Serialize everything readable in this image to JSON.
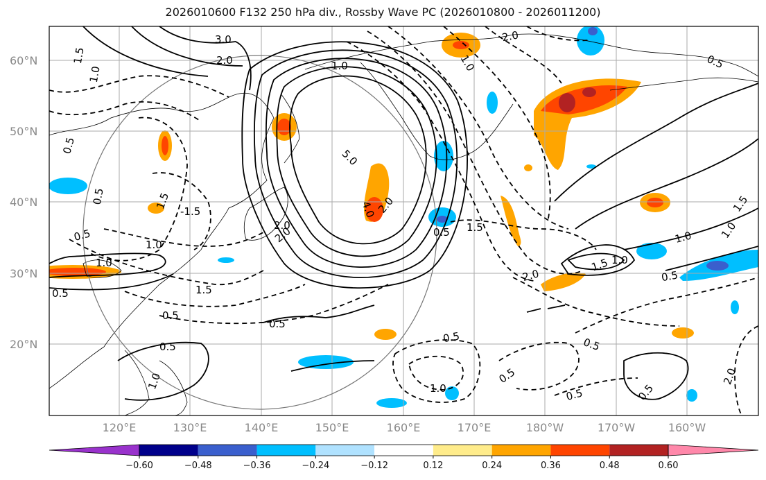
{
  "title": "2026010600 F132 250 hPa div., Rossby Wave PC (2026010800 - 2026011200)",
  "lat_ticks": [
    "60°N",
    "50°N",
    "40°N",
    "30°N",
    "20°N"
  ],
  "lon_ticks": [
    "120°E",
    "130°E",
    "140°E",
    "150°E",
    "160°E",
    "170°E",
    "180°W",
    "170°W",
    "160°W"
  ],
  "colorbar": {
    "colors": [
      "#9932cc",
      "#00008b",
      "#3a5fcd",
      "#00bfff",
      "#b0e2ff",
      "#ffffff",
      "#ffec8b",
      "#ffa500",
      "#ff4500",
      "#b22222",
      "#ff88aa"
    ],
    "labels": [
      "−0.60",
      "−0.48",
      "−0.36",
      "−0.24",
      "−0.12",
      "0.12",
      "0.24",
      "0.36",
      "0.48",
      "0.60"
    ]
  },
  "contour_labels": [
    "3.0",
    "2.0",
    "1.5",
    "1.0",
    "0.5",
    "1.0",
    "4.0",
    "5.0",
    "2.0",
    "1.5",
    "0.5",
    "2.0",
    "-1.5",
    "2.0",
    "1.0",
    "0.5",
    "1.5",
    "1.0",
    "0.5",
    "0.5",
    "0.5",
    "0.5",
    "0.5",
    "1.0",
    "2.0",
    "1.0",
    "1.5",
    "0.5",
    "1.0",
    "0.5",
    "0.5",
    "0.5",
    "0.5",
    "0.5",
    "1.0",
    "2.0",
    "1.5",
    "2.0",
    "1.0",
    "1.5",
    "0.5",
    "1.0"
  ],
  "colors": {
    "frame": "#000000",
    "grid": "#aaaaaa",
    "circle": "#777777",
    "contour": "#000000"
  }
}
